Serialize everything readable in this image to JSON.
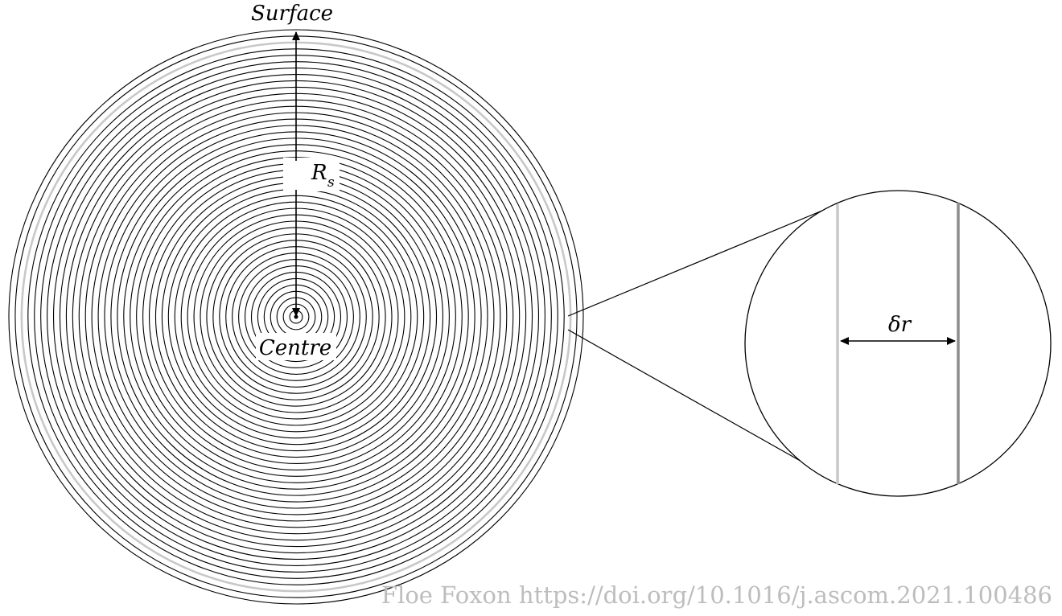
{
  "labels": {
    "surface": "Surface",
    "centre": "Centre",
    "radius_symbol": "R",
    "radius_subscript": "s",
    "shell_width": "δr"
  },
  "credit": "Floe Foxon https://doi.org/10.1016/j.ascom.2021.100486",
  "colors": {
    "shell": "#000000",
    "highlighted_inner_shell": "#c8c8c8",
    "highlighted_outer_shell": "#8c8c8c",
    "credit_text": "#bdbdbd",
    "background": "#ffffff"
  },
  "shells": {
    "count": 45,
    "highlighted_shell_number": 43
  }
}
